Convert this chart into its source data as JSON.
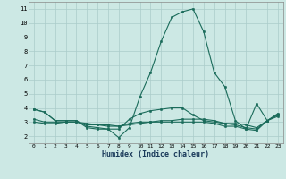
{
  "xlabel": "Humidex (Indice chaleur)",
  "x": [
    0,
    1,
    2,
    3,
    4,
    5,
    6,
    7,
    8,
    9,
    10,
    11,
    12,
    13,
    14,
    15,
    16,
    17,
    18,
    19,
    20,
    21,
    22,
    23
  ],
  "line1": [
    3.9,
    3.7,
    3.1,
    3.1,
    3.1,
    2.6,
    2.5,
    2.5,
    1.9,
    2.6,
    4.8,
    6.5,
    8.7,
    10.4,
    10.8,
    11.0,
    9.4,
    6.5,
    5.5,
    3.1,
    2.5,
    4.3,
    3.1,
    3.6
  ],
  "line2": [
    3.9,
    3.7,
    3.1,
    3.1,
    3.1,
    2.7,
    2.6,
    2.5,
    2.5,
    3.2,
    3.6,
    3.8,
    3.9,
    4.0,
    4.0,
    3.5,
    3.1,
    3.0,
    2.9,
    2.9,
    2.8,
    2.6,
    3.1,
    3.5
  ],
  "line3": [
    3.2,
    3.0,
    3.0,
    3.0,
    3.0,
    2.8,
    2.8,
    2.7,
    2.7,
    2.9,
    3.0,
    3.0,
    3.1,
    3.1,
    3.2,
    3.2,
    3.2,
    3.1,
    2.9,
    2.8,
    2.6,
    2.5,
    3.1,
    3.5
  ],
  "line4": [
    3.0,
    2.9,
    2.9,
    3.0,
    3.0,
    2.9,
    2.8,
    2.8,
    2.7,
    2.8,
    2.9,
    3.0,
    3.0,
    3.0,
    3.0,
    3.0,
    3.0,
    2.9,
    2.7,
    2.7,
    2.5,
    2.4,
    3.1,
    3.4
  ],
  "line_color": "#1a6b5a",
  "bg_color": "#cce8e4",
  "grid_color": "#aaccca",
  "ylim": [
    1.5,
    11.5
  ],
  "yticks": [
    2,
    3,
    4,
    5,
    6,
    7,
    8,
    9,
    10,
    11
  ],
  "xlim": [
    -0.5,
    23.5
  ],
  "xtick_fontsize": 4.5,
  "ytick_fontsize": 5.0,
  "xlabel_fontsize": 6.0
}
